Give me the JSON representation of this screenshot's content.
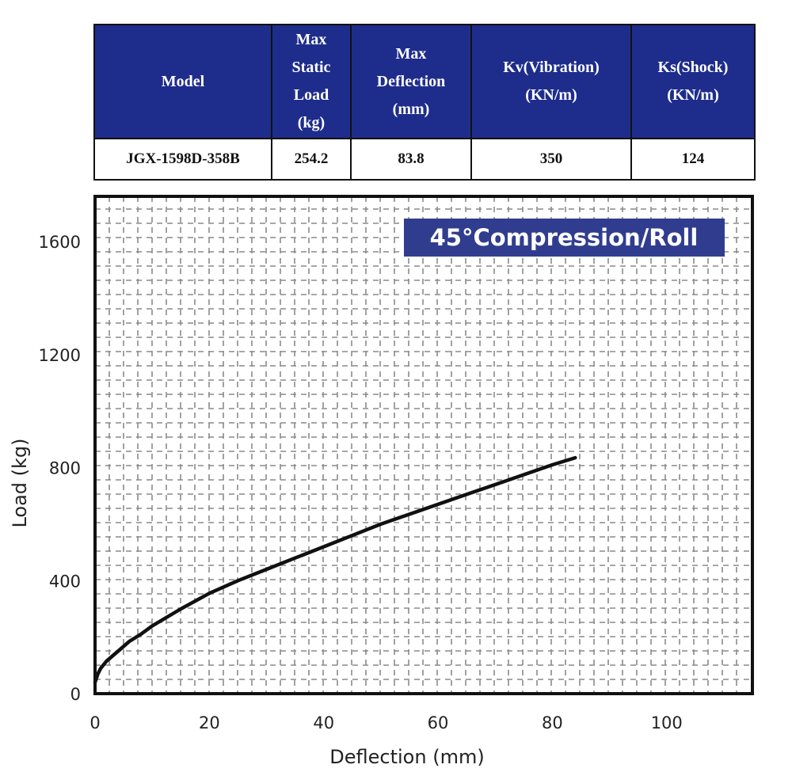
{
  "colors": {
    "header_bg": "#1e2d8c",
    "badge_bg": "#303d8f",
    "curve": "#111111",
    "grid": "#8a8a8a",
    "frame": "#111111"
  },
  "table": {
    "headers": [
      [
        "Model"
      ],
      [
        "Max",
        "Static",
        "Load",
        "(kg)"
      ],
      [
        "Max",
        "Deflection",
        "(mm)"
      ],
      [
        "Kv(Vibration)",
        "(KN/m)"
      ],
      [
        "Ks(Shock)",
        "(KN/m)"
      ]
    ],
    "rows": [
      [
        "JGX-1598D-358B",
        "254.2",
        "83.8",
        "350",
        "124"
      ]
    ]
  },
  "chart_data": {
    "type": "line",
    "title": "45°Compression/Roll",
    "xlabel": "Deflection (mm)",
    "ylabel": "Load (kg)",
    "xlim": [
      0,
      115
    ],
    "ylim": [
      0,
      1760
    ],
    "xticks": [
      0,
      20,
      40,
      60,
      80,
      100
    ],
    "yticks": [
      0,
      400,
      800,
      1200,
      1600
    ],
    "grid": true,
    "series": [
      {
        "x": [
          0,
          0.5,
          1,
          2,
          4,
          6,
          8,
          10,
          15,
          20,
          25,
          30,
          35,
          40,
          45,
          50,
          55,
          60,
          65,
          70,
          75,
          80,
          84
        ],
        "y": [
          40,
          70,
          90,
          115,
          150,
          185,
          210,
          240,
          300,
          355,
          400,
          440,
          480,
          520,
          560,
          600,
          635,
          670,
          705,
          740,
          775,
          810,
          835
        ]
      }
    ]
  }
}
